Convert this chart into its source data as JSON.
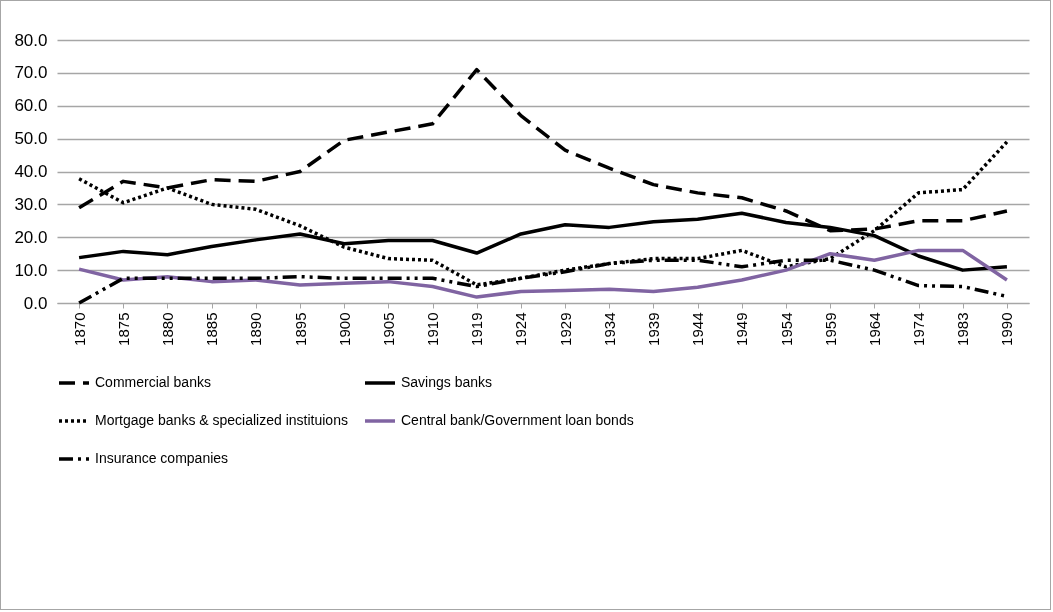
{
  "chart_data": {
    "type": "line",
    "categories": [
      "1870",
      "1875",
      "1880",
      "1885",
      "1890",
      "1895",
      "1900",
      "1905",
      "1910",
      "1919",
      "1924",
      "1929",
      "1934",
      "1939",
      "1944",
      "1949",
      "1954",
      "1959",
      "1964",
      "1974",
      "1983",
      "1990"
    ],
    "series": [
      {
        "name": "Commercial banks",
        "color": "#000000",
        "line_style": "dashed",
        "values": [
          29,
          37,
          35,
          37.5,
          37,
          40,
          49.5,
          52,
          54.5,
          71,
          57,
          46.5,
          41,
          36,
          33.5,
          32,
          28,
          22,
          22.5,
          25,
          25,
          28
        ]
      },
      {
        "name": "Savings banks",
        "color": "#000000",
        "line_style": "solid",
        "values": [
          13.8,
          15.7,
          14.7,
          17.2,
          19.2,
          21,
          18,
          19,
          19,
          15.2,
          21,
          23.8,
          23,
          24.7,
          25.5,
          27.3,
          24.5,
          23,
          20.5,
          14.3,
          10,
          11
        ]
      },
      {
        "name": "Mortgage banks & specialized instituions",
        "color": "#000000",
        "line_style": "dotted",
        "values": [
          37.8,
          30.5,
          35,
          30,
          28.5,
          23.5,
          17,
          13.5,
          13,
          5.5,
          7.5,
          10,
          12,
          13.5,
          13.5,
          16,
          11,
          13.5,
          22,
          33.5,
          34.5,
          49
        ]
      },
      {
        "name": "Central bank/Government loan bonds",
        "color": "#8064a2",
        "line_style": "solid",
        "values": [
          10.3,
          7,
          8,
          6.5,
          7,
          5.5,
          6,
          6.5,
          5,
          1.8,
          3.5,
          3.8,
          4.2,
          3.5,
          4.8,
          7,
          10,
          15,
          13,
          16,
          16,
          7
        ]
      },
      {
        "name": "Insurance companies",
        "color": "#000000",
        "line_style": "dashed",
        "values": [
          0,
          7.5,
          7.5,
          7.5,
          7.5,
          8,
          7.5,
          7.5,
          7.5,
          5,
          7.5,
          9.5,
          12,
          13,
          13,
          11,
          13,
          13,
          10,
          5.3,
          5,
          2
        ]
      }
    ],
    "ylim": [
      0,
      80
    ],
    "yticks": [
      {
        "value": 0,
        "label": "0.0"
      },
      {
        "value": 10,
        "label": "10.0"
      },
      {
        "value": 20,
        "label": "20.0"
      },
      {
        "value": 30,
        "label": "30.0"
      },
      {
        "value": 40,
        "label": "40.0"
      },
      {
        "value": 50,
        "label": "50.0"
      },
      {
        "value": 60,
        "label": "60.0"
      },
      {
        "value": 70,
        "label": "70.0"
      },
      {
        "value": 80,
        "label": "80.0"
      }
    ],
    "grid": "y",
    "legend": "bottom",
    "marker": "none"
  }
}
